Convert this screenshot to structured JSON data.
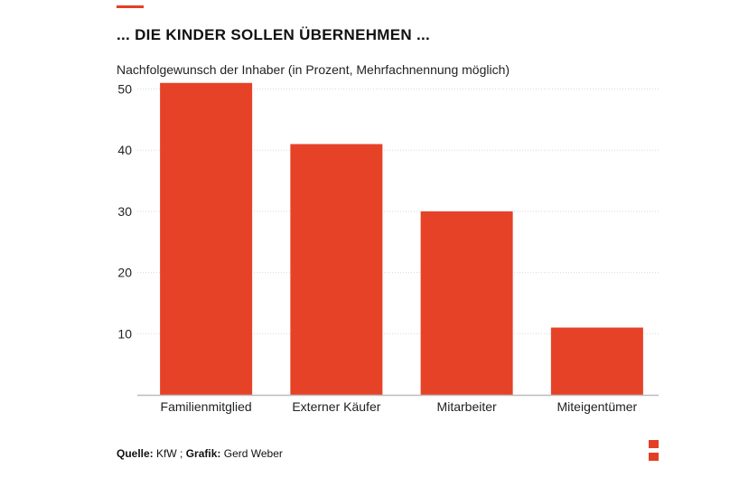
{
  "header": {
    "title": "... DIE KINDER SOLLEN ÜBERNEHMEN ...",
    "subtitle": "Nachfolgewunsch der Inhaber (in Prozent, Mehrfachnennung möglich)"
  },
  "footer": {
    "source_label": "Quelle:",
    "source_value": "KfW ;",
    "graphic_label": "Grafik:",
    "graphic_value": "Gerd Weber"
  },
  "colors": {
    "accent": "#e33f25",
    "bar": "#e64227",
    "grid": "#d9d9d9",
    "axis": "#bbbbbb"
  },
  "chart_data": {
    "type": "bar",
    "categories": [
      "Familienmitglied",
      "Externer Käufer",
      "Mitarbeiter",
      "Miteigentümer"
    ],
    "values": [
      51,
      41,
      30,
      11
    ],
    "ylim": [
      0,
      52
    ],
    "yticks": [
      10,
      20,
      30,
      40,
      50
    ],
    "grid": true
  }
}
